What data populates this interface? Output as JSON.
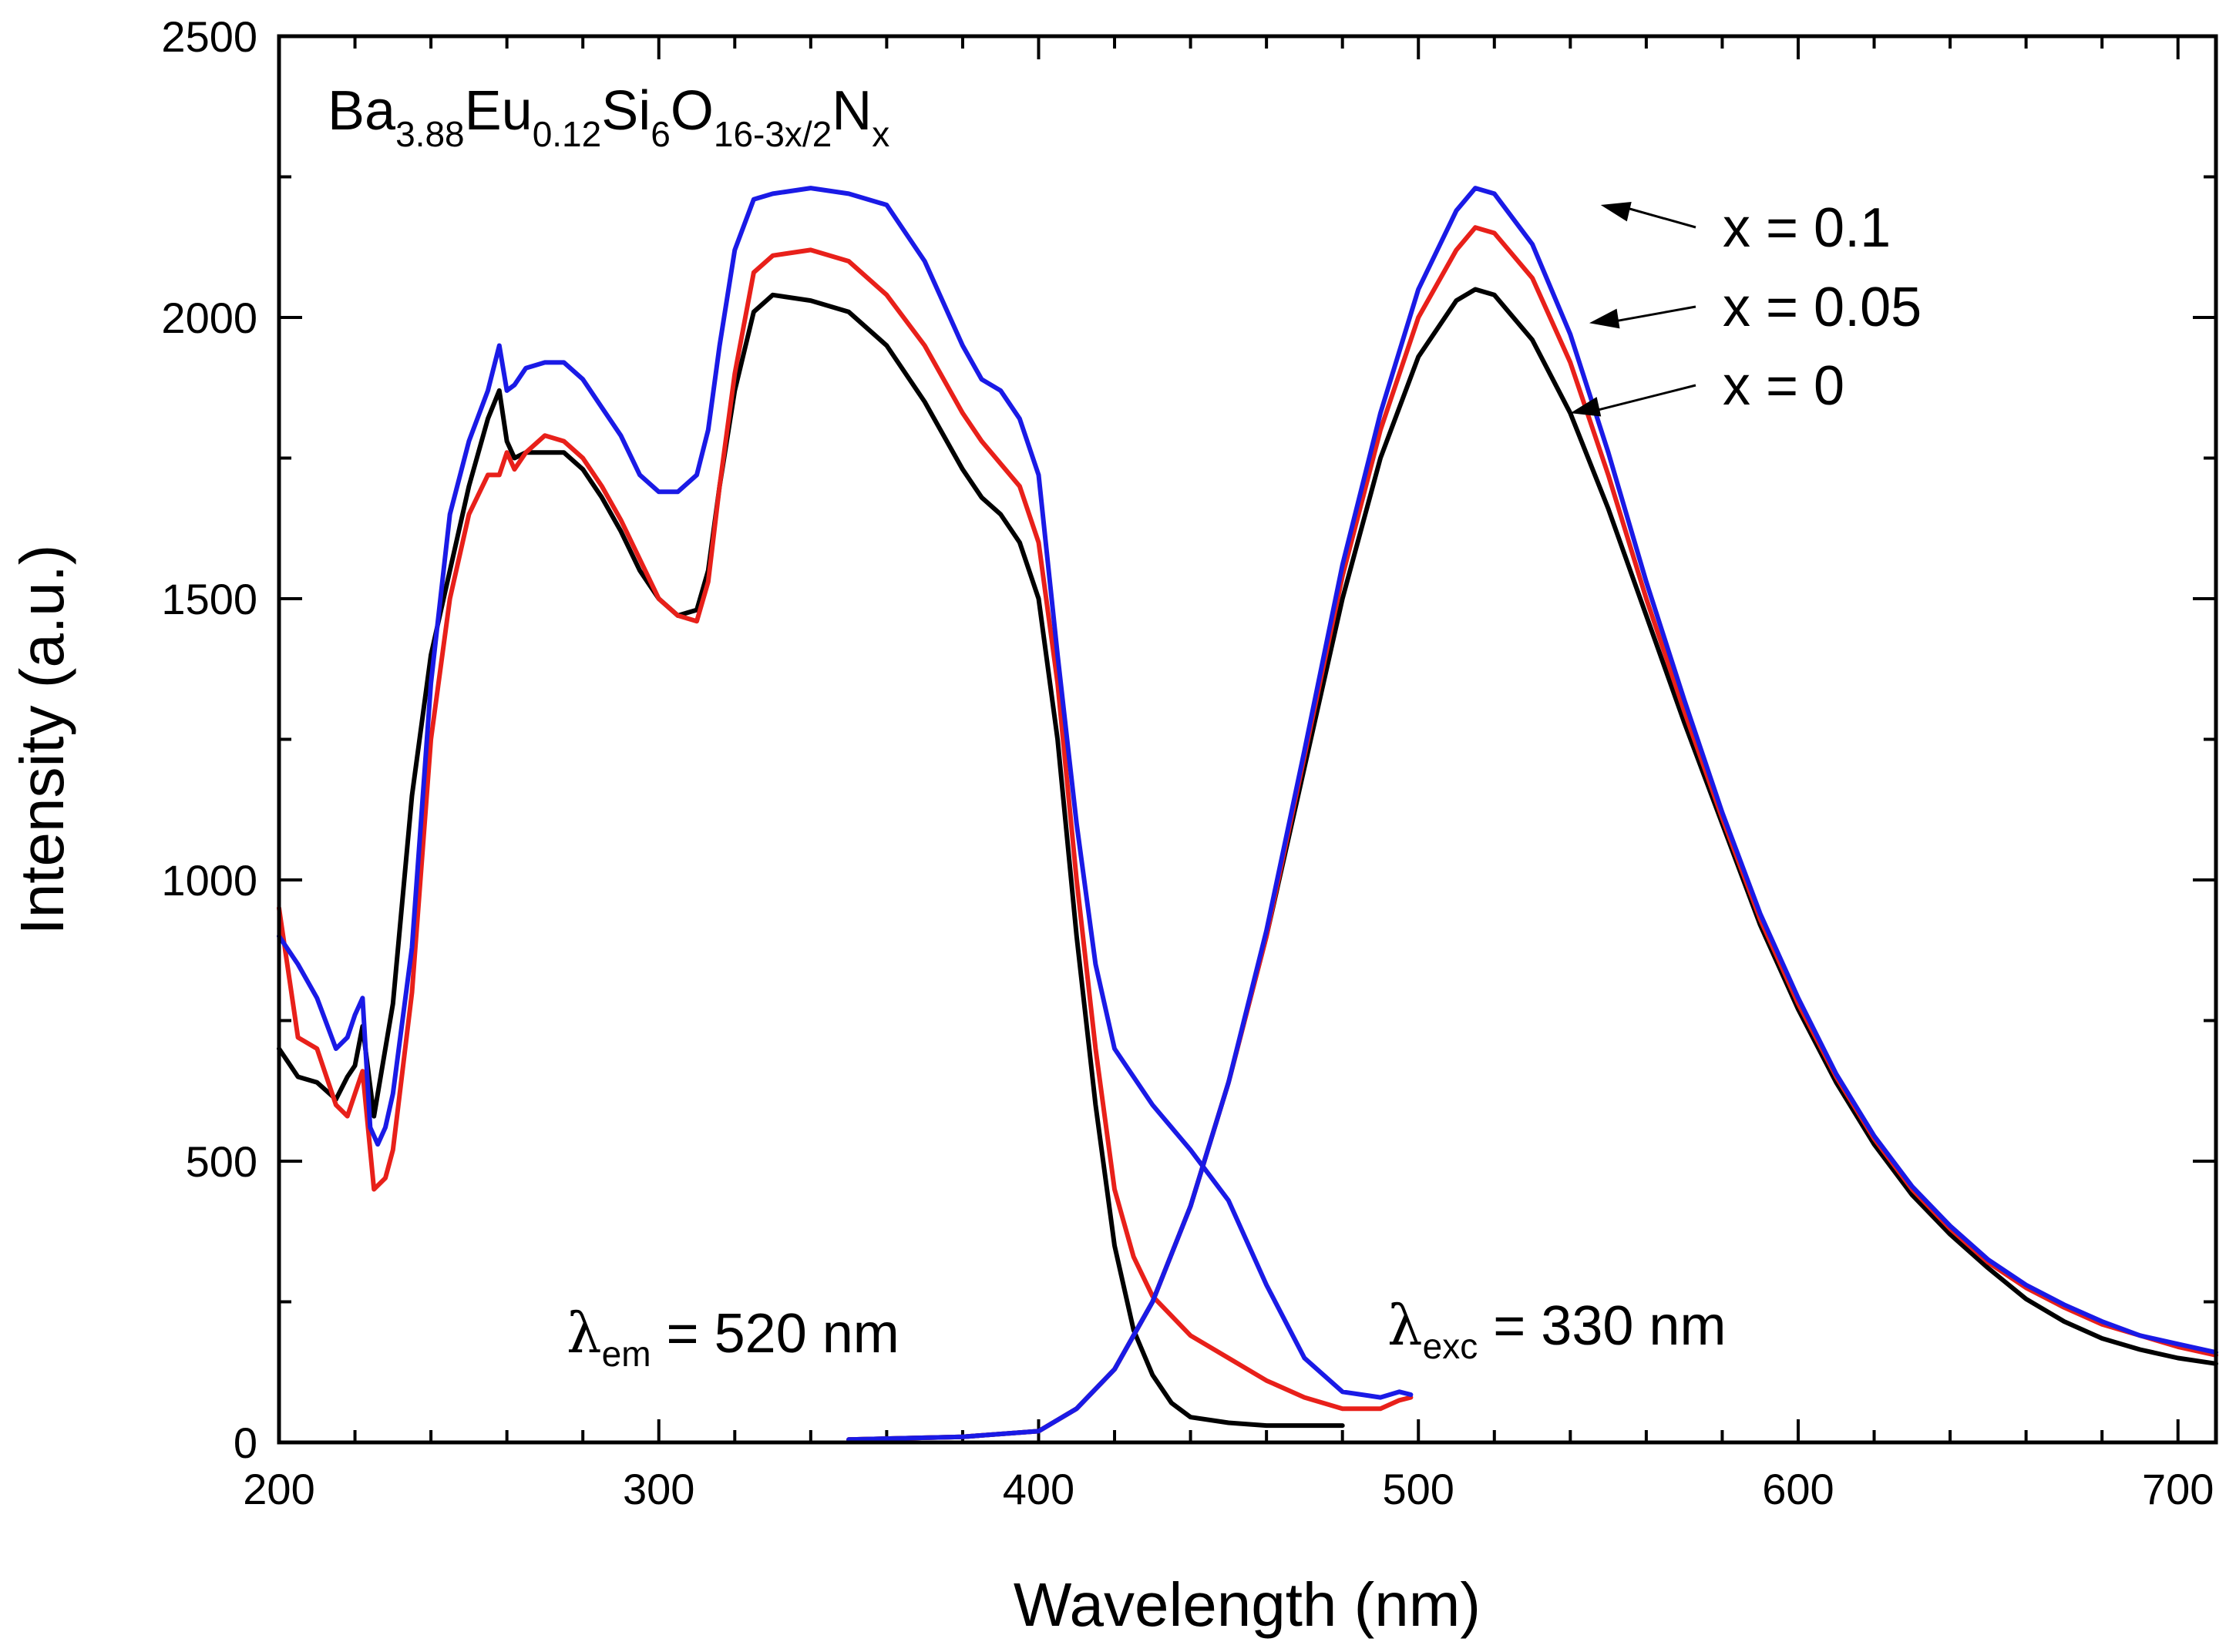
{
  "chart_data": {
    "type": "line",
    "title": "",
    "xlabel": "Wavelength (nm)",
    "ylabel": "Intensity (a.u.)",
    "xlim": [
      200,
      710
    ],
    "ylim": [
      0,
      2500
    ],
    "x_ticks": [
      200,
      300,
      400,
      500,
      600,
      700
    ],
    "y_ticks": [
      0,
      500,
      1000,
      1500,
      2000,
      2500
    ],
    "x_tick_labels": [
      "200",
      "300",
      "400",
      "500",
      "600",
      "700"
    ],
    "y_tick_labels": [
      "0",
      "500",
      "1000",
      "1500",
      "2000",
      "2500"
    ],
    "formula": {
      "parts": [
        {
          "text": "Ba",
          "sub": false
        },
        {
          "text": "3.88",
          "sub": true
        },
        {
          "text": "Eu",
          "sub": false
        },
        {
          "text": "0.12",
          "sub": true
        },
        {
          "text": "Si",
          "sub": false
        },
        {
          "text": "6",
          "sub": true
        },
        {
          "text": "O",
          "sub": false
        },
        {
          "text": "16-3x/2",
          "sub": true
        },
        {
          "text": "N",
          "sub": false
        },
        {
          "text": "x",
          "sub": true
        }
      ]
    },
    "annotations": {
      "em": {
        "symbol": "λ",
        "sub": "em",
        "text": " = 520 nm"
      },
      "exc": {
        "symbol": "λ",
        "sub": "exc",
        "text": " = 330 nm"
      }
    },
    "legend_labels": [
      "x = 0.1",
      "x = 0.05",
      "x = 0"
    ],
    "series": [
      {
        "name": "x = 0 excitation",
        "color": "#000000",
        "x": [
          200,
          205,
          210,
          215,
          218,
          220,
          222,
          225,
          230,
          235,
          240,
          245,
          250,
          255,
          258,
          260,
          262,
          265,
          270,
          275,
          280,
          285,
          290,
          295,
          300,
          305,
          310,
          313,
          316,
          320,
          325,
          330,
          340,
          350,
          360,
          370,
          380,
          385,
          390,
          395,
          400,
          405,
          410,
          415,
          420,
          425,
          430,
          435,
          440,
          450,
          460,
          470,
          480
        ],
        "values": [
          700,
          650,
          640,
          610,
          650,
          670,
          740,
          580,
          780,
          1150,
          1400,
          1550,
          1700,
          1820,
          1870,
          1780,
          1750,
          1760,
          1760,
          1760,
          1730,
          1680,
          1620,
          1550,
          1500,
          1470,
          1480,
          1550,
          1700,
          1870,
          2010,
          2040,
          2030,
          2010,
          1950,
          1850,
          1730,
          1680,
          1650,
          1600,
          1500,
          1250,
          900,
          600,
          350,
          200,
          120,
          70,
          45,
          35,
          30,
          30,
          30
        ]
      },
      {
        "name": "x = 0.05 excitation",
        "color": "#e8201a",
        "x": [
          200,
          205,
          210,
          215,
          218,
          220,
          222,
          225,
          228,
          230,
          235,
          240,
          245,
          250,
          255,
          258,
          260,
          262,
          265,
          270,
          275,
          280,
          285,
          290,
          295,
          300,
          305,
          310,
          313,
          316,
          320,
          325,
          330,
          340,
          350,
          360,
          370,
          380,
          385,
          390,
          395,
          400,
          405,
          410,
          415,
          420,
          425,
          430,
          440,
          450,
          460,
          470,
          480,
          490,
          495,
          498
        ],
        "values": [
          950,
          720,
          700,
          600,
          580,
          620,
          660,
          450,
          470,
          520,
          800,
          1250,
          1500,
          1650,
          1720,
          1720,
          1760,
          1730,
          1760,
          1790,
          1780,
          1750,
          1700,
          1640,
          1570,
          1500,
          1470,
          1460,
          1530,
          1700,
          1900,
          2080,
          2110,
          2120,
          2100,
          2040,
          1950,
          1830,
          1780,
          1740,
          1700,
          1600,
          1350,
          1000,
          700,
          450,
          330,
          260,
          190,
          150,
          110,
          80,
          60,
          60,
          75,
          80
        ]
      },
      {
        "name": "x = 0.1 excitation",
        "color": "#1a1ae6",
        "x": [
          200,
          205,
          210,
          215,
          218,
          220,
          222,
          224,
          226,
          228,
          230,
          235,
          240,
          245,
          250,
          255,
          258,
          260,
          262,
          265,
          270,
          275,
          280,
          285,
          290,
          295,
          300,
          305,
          310,
          313,
          316,
          320,
          325,
          330,
          340,
          350,
          360,
          370,
          380,
          385,
          390,
          395,
          400,
          405,
          410,
          415,
          420,
          430,
          440,
          450,
          460,
          470,
          480,
          490,
          495,
          498
        ],
        "values": [
          900,
          850,
          790,
          700,
          720,
          760,
          790,
          560,
          530,
          560,
          620,
          880,
          1350,
          1650,
          1780,
          1870,
          1950,
          1870,
          1880,
          1910,
          1920,
          1920,
          1890,
          1840,
          1790,
          1720,
          1690,
          1690,
          1720,
          1800,
          1950,
          2120,
          2210,
          2220,
          2230,
          2220,
          2200,
          2100,
          1950,
          1890,
          1870,
          1820,
          1720,
          1400,
          1100,
          850,
          700,
          600,
          520,
          430,
          280,
          150,
          90,
          80,
          90,
          85
        ]
      },
      {
        "name": "x = 0 emission",
        "color": "#000000",
        "x": [
          350,
          380,
          400,
          410,
          420,
          430,
          440,
          450,
          460,
          470,
          480,
          490,
          500,
          510,
          515,
          520,
          530,
          540,
          550,
          560,
          570,
          580,
          590,
          600,
          610,
          620,
          630,
          640,
          650,
          660,
          670,
          680,
          690,
          700,
          710
        ],
        "values": [
          5,
          10,
          20,
          60,
          130,
          250,
          420,
          640,
          900,
          1200,
          1500,
          1750,
          1930,
          2030,
          2050,
          2040,
          1960,
          1830,
          1660,
          1470,
          1280,
          1100,
          920,
          770,
          640,
          530,
          440,
          370,
          310,
          255,
          215,
          185,
          165,
          150,
          140
        ]
      },
      {
        "name": "x = 0.05 emission",
        "color": "#e8201a",
        "x": [
          350,
          380,
          400,
          410,
          420,
          430,
          440,
          450,
          460,
          470,
          480,
          490,
          500,
          510,
          515,
          520,
          530,
          540,
          550,
          560,
          570,
          580,
          590,
          600,
          610,
          620,
          630,
          640,
          650,
          660,
          670,
          680,
          690,
          700,
          710
        ],
        "values": [
          5,
          10,
          20,
          60,
          130,
          250,
          420,
          640,
          900,
          1220,
          1540,
          1800,
          2000,
          2120,
          2160,
          2150,
          2070,
          1920,
          1720,
          1500,
          1300,
          1110,
          930,
          780,
          650,
          540,
          450,
          380,
          320,
          275,
          240,
          210,
          190,
          170,
          155
        ]
      },
      {
        "name": "x = 0.1 emission",
        "color": "#1a1ae6",
        "x": [
          350,
          380,
          400,
          410,
          420,
          430,
          440,
          450,
          460,
          470,
          480,
          490,
          500,
          510,
          515,
          520,
          530,
          540,
          550,
          560,
          570,
          580,
          590,
          600,
          610,
          620,
          630,
          640,
          650,
          660,
          670,
          680,
          690,
          700,
          710
        ],
        "values": [
          5,
          10,
          20,
          60,
          130,
          250,
          420,
          640,
          910,
          1230,
          1560,
          1830,
          2050,
          2190,
          2230,
          2220,
          2130,
          1970,
          1760,
          1530,
          1320,
          1120,
          940,
          790,
          655,
          545,
          455,
          385,
          325,
          280,
          245,
          215,
          190,
          175,
          160
        ]
      }
    ]
  }
}
